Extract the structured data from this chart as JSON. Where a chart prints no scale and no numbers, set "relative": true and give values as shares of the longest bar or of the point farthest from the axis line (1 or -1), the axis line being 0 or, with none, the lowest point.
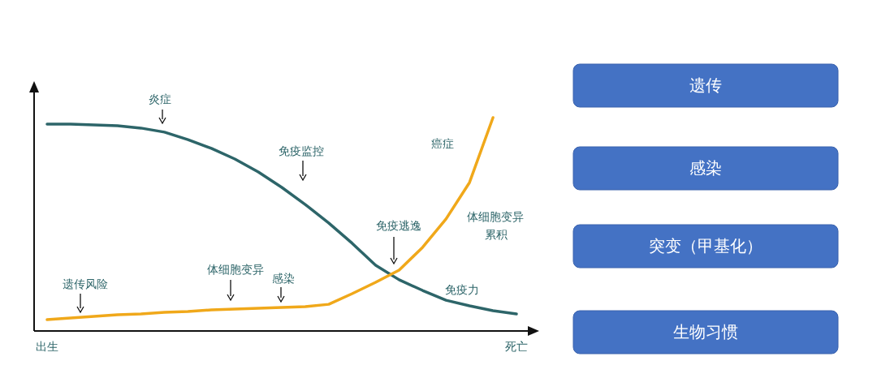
{
  "chart_data": [
    {
      "type": "line",
      "relative": true,
      "categories": [
        "出生",
        null,
        null,
        null,
        null,
        null,
        null,
        null,
        null,
        null,
        null,
        null,
        null,
        null,
        null,
        null,
        null,
        null,
        null,
        null,
        "死亡"
      ],
      "series": [
        {
          "name": "免疫力",
          "color": "#2d6569",
          "values": [
            0.97,
            0.97,
            0.966,
            0.962,
            0.951,
            0.932,
            0.897,
            0.856,
            0.806,
            0.745,
            0.673,
            0.593,
            0.506,
            0.411,
            0.308,
            0.24,
            0.19,
            0.144,
            0.118,
            0.095,
            0.08
          ]
        },
        {
          "name": "癌症",
          "color": "#f0a81a",
          "values": [
            0.053,
            0.061,
            0.068,
            0.076,
            0.08,
            0.087,
            0.091,
            0.099,
            0.103,
            0.106,
            0.11,
            0.114,
            0.125,
            0.175,
            0.228,
            0.285,
            0.392,
            0.525,
            0.696,
            1.0,
            null
          ]
        }
      ],
      "annotations": [
        "炎症",
        "免疫监控",
        "免疫逃逸",
        "体细胞变异",
        "累积",
        "遗传风险",
        "体细胞变异",
        "感染"
      ]
    },
    {
      "type": "other",
      "annotations": [
        "遗传",
        "感染",
        "突变（甲基化）",
        "生物习惯"
      ]
    }
  ]
}
